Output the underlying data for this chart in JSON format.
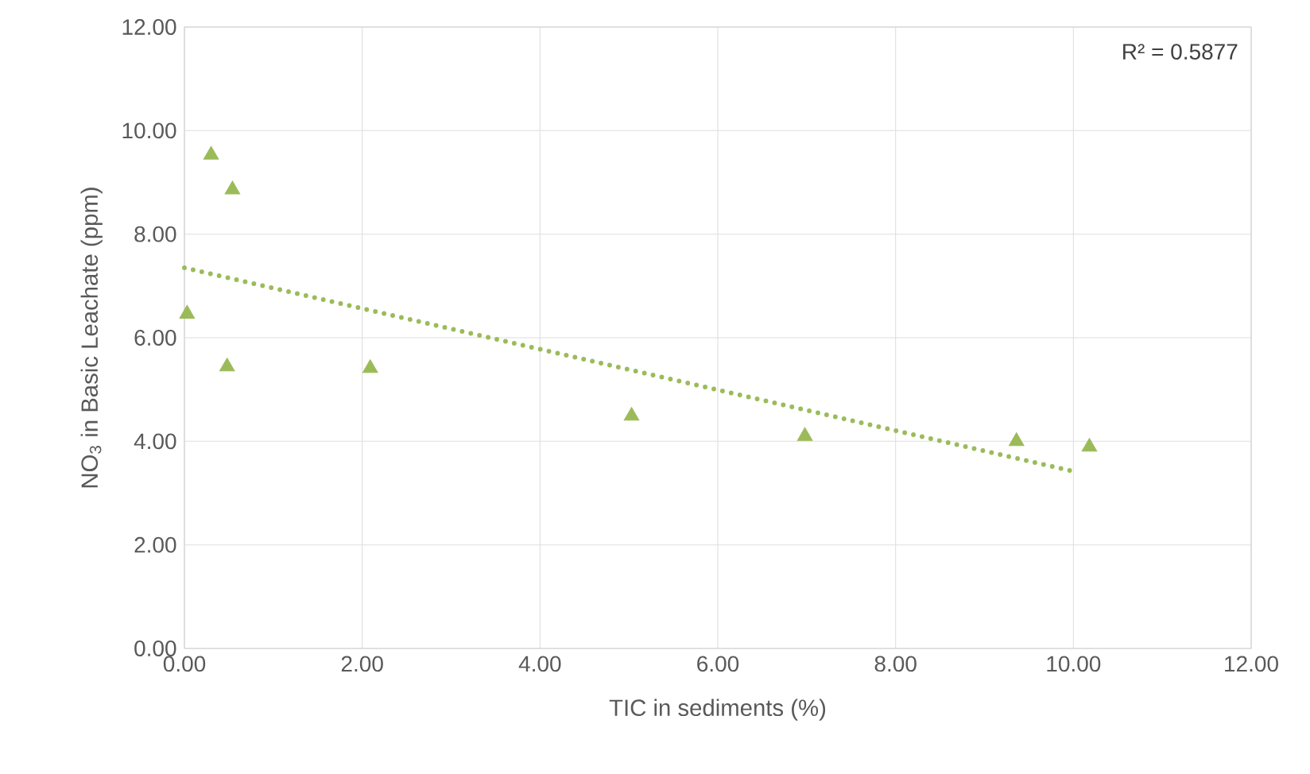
{
  "chart_data": {
    "type": "scatter",
    "xlabel": "TIC in sediments (%)",
    "ylabel": "NO$_{3}$ in Basic Leachate (ppm)",
    "annotations": [
      "R² = 0.5877"
    ],
    "xlim": [
      0,
      12
    ],
    "ylim": [
      0,
      12
    ],
    "xticks": [
      {
        "value": 0,
        "label": "0.00"
      },
      {
        "value": 2,
        "label": "2.00"
      },
      {
        "value": 4,
        "label": "4.00"
      },
      {
        "value": 6,
        "label": "6.00"
      },
      {
        "value": 8,
        "label": "8.00"
      },
      {
        "value": 10,
        "label": "10.00"
      },
      {
        "value": 12,
        "label": "12.00"
      }
    ],
    "yticks": [
      {
        "value": 0,
        "label": "0.00"
      },
      {
        "value": 2,
        "label": "2.00"
      },
      {
        "value": 4,
        "label": "4.00"
      },
      {
        "value": 6,
        "label": "6.00"
      },
      {
        "value": 8,
        "label": "8.00"
      },
      {
        "value": 10,
        "label": "10.00"
      },
      {
        "value": 12,
        "label": "12.00"
      }
    ],
    "grid": true,
    "series": [
      {
        "marker": "triangle",
        "color": "#9bbb59",
        "x": [
          0.03,
          0.3,
          0.54,
          0.48,
          2.09,
          5.03,
          6.98,
          9.36,
          10.18
        ],
        "values": [
          6.46,
          9.53,
          8.86,
          5.44,
          5.41,
          4.49,
          4.1,
          4.0,
          3.89
        ]
      },
      {
        "type": "line",
        "marker": "none",
        "line_style": "dotted",
        "color": "#9bbb59",
        "x": [
          0,
          10.0
        ],
        "values": [
          7.35,
          3.42
        ]
      }
    ]
  }
}
